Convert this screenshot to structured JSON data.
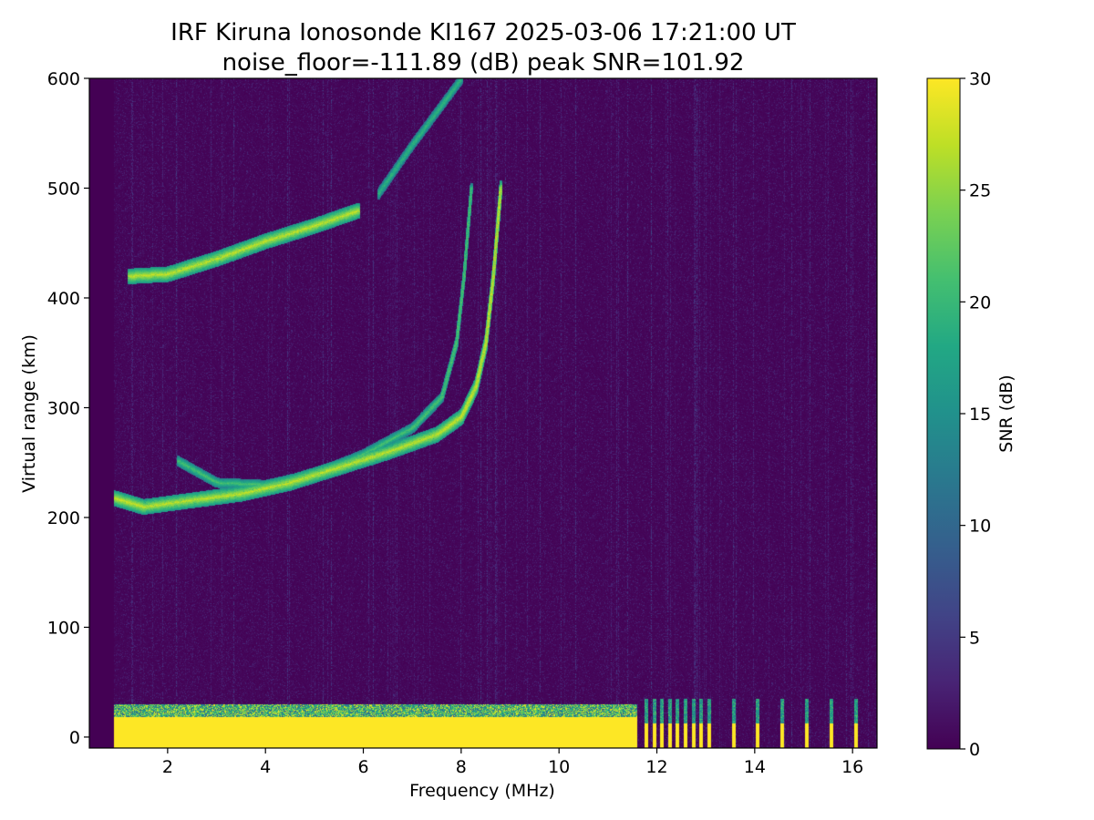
{
  "chart_data": {
    "type": "heatmap",
    "title": "IRF Kiruna Ionosonde KI167 2025-03-06 17:21:00  UT",
    "subtitle": "noise_floor=-111.89 (dB) peak SNR=101.92",
    "xlabel": "Frequency (MHz)",
    "ylabel": "Virtual range (km)",
    "colorbar_label": "SNR (dB)",
    "colormap": "viridis",
    "xlim": [
      0.4,
      16.5
    ],
    "ylim": [
      -10,
      600
    ],
    "clim": [
      0,
      30
    ],
    "x_ticks": [
      2,
      4,
      6,
      8,
      10,
      12,
      14,
      16
    ],
    "y_ticks": [
      0,
      100,
      200,
      300,
      400,
      500,
      600
    ],
    "colorbar_ticks": [
      0,
      5,
      10,
      15,
      20,
      25,
      30
    ],
    "data_x_range": [
      0.9,
      16.5
    ],
    "traces": [
      {
        "name_hint": "E-region echo band",
        "x": [
          0.9,
          11.6
        ],
        "y_range": [
          -10,
          30
        ],
        "snr": 30
      },
      {
        "name_hint": "F-layer O-mode trace",
        "points": [
          [
            0.9,
            218
          ],
          [
            1.5,
            210
          ],
          [
            2.5,
            216
          ],
          [
            3.5,
            222
          ],
          [
            4.5,
            232
          ],
          [
            5.5,
            246
          ],
          [
            6.5,
            260
          ],
          [
            7.5,
            276
          ],
          [
            8.0,
            292
          ],
          [
            8.3,
            320
          ],
          [
            8.5,
            360
          ],
          [
            8.65,
            420
          ],
          [
            8.8,
            500
          ]
        ],
        "snr": 28
      },
      {
        "name_hint": "F-layer X-mode trace",
        "points": [
          [
            2.2,
            252
          ],
          [
            3.0,
            232
          ],
          [
            4.0,
            230
          ],
          [
            5.0,
            240
          ],
          [
            6.0,
            258
          ],
          [
            7.0,
            282
          ],
          [
            7.6,
            310
          ],
          [
            7.9,
            360
          ],
          [
            8.05,
            420
          ],
          [
            8.2,
            500
          ]
        ],
        "snr": 22
      },
      {
        "name_hint": "multi-hop echo band",
        "points": [
          [
            1.2,
            420
          ],
          [
            2.0,
            422
          ],
          [
            3.0,
            436
          ],
          [
            4.0,
            452
          ],
          [
            5.0,
            466
          ],
          [
            5.9,
            480
          ]
        ],
        "snr": 28
      },
      {
        "name_hint": "upper multi-hop trace",
        "points": [
          [
            6.3,
            495
          ],
          [
            7.0,
            540
          ],
          [
            7.5,
            570
          ],
          [
            8.0,
            600
          ]
        ],
        "snr": 20
      }
    ]
  }
}
